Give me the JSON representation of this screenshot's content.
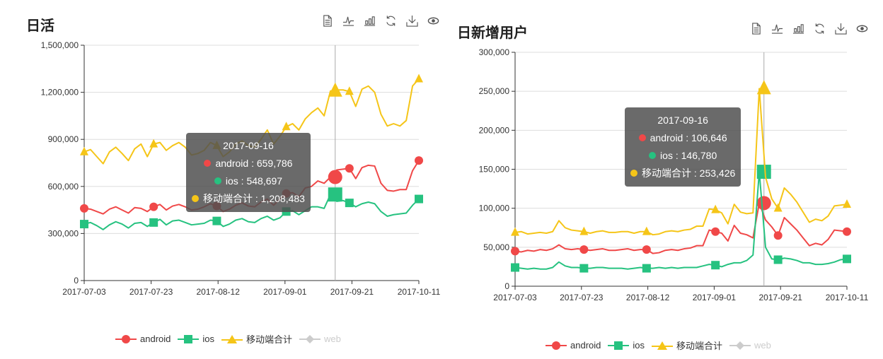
{
  "toolbox": {
    "icons": [
      "data-view-icon",
      "line-chart-icon",
      "bar-chart-icon",
      "restore-icon",
      "save-image-icon",
      "eye-icon"
    ]
  },
  "legend": {
    "items": [
      {
        "label": "android",
        "color": "#f04848",
        "marker": "circle",
        "active": true
      },
      {
        "label": "ios",
        "color": "#26c280",
        "marker": "square",
        "active": true
      },
      {
        "label": "移动端合计",
        "color": "#f5c518",
        "marker": "triangle",
        "active": true
      },
      {
        "label": "web",
        "color": "#cccccc",
        "marker": "diamond",
        "active": false
      }
    ]
  },
  "left": {
    "title": "日活",
    "tooltip": {
      "date": "2017-09-16",
      "rows": [
        {
          "name": "android",
          "value": "659,786",
          "color": "#f04848"
        },
        {
          "name": "ios",
          "value": "548,697",
          "color": "#26c280"
        },
        {
          "name": "移动端合计",
          "value": "1,208,483",
          "color": "#f5c518"
        }
      ]
    }
  },
  "right": {
    "title": "日新增用户",
    "tooltip": {
      "date": "2017-09-16",
      "rows": [
        {
          "name": "android",
          "value": "106,646",
          "color": "#f04848"
        },
        {
          "name": "ios",
          "value": "146,780",
          "color": "#26c280"
        },
        {
          "name": "移动端合计",
          "value": "253,426",
          "color": "#f5c518"
        }
      ]
    }
  },
  "chart_data": [
    {
      "type": "line",
      "title": "日活",
      "xlabel": "",
      "ylabel": "",
      "ylim": [
        0,
        1500000
      ],
      "yticks": [
        0,
        300000,
        600000,
        900000,
        1200000,
        1500000
      ],
      "ytick_labels": [
        "0",
        "300,000",
        "600,000",
        "900,000",
        "1,200,000",
        "1,500,000"
      ],
      "xticks": [
        "2017-07-03",
        "2017-07-23",
        "2017-08-12",
        "2017-09-01",
        "2017-09-21",
        "2017-10-11"
      ],
      "x_start": "2017-07-03",
      "x_end": "2017-10-11",
      "x_step_days": 2,
      "grid": true,
      "legend_position": "bottom",
      "highlight": {
        "x": "2017-09-16",
        "android": 659786,
        "ios": 548697,
        "移动端合计": 1208483
      },
      "series": [
        {
          "name": "android",
          "color": "#f04848",
          "marker": "circle",
          "values": [
            460000,
            455000,
            440000,
            425000,
            455000,
            470000,
            450000,
            430000,
            465000,
            460000,
            440000,
            470000,
            485000,
            450000,
            475000,
            485000,
            470000,
            450000,
            455000,
            470000,
            490000,
            475000,
            440000,
            455000,
            480000,
            495000,
            475000,
            470000,
            500000,
            520000,
            480000,
            520000,
            555000,
            560000,
            535000,
            590000,
            600000,
            635000,
            620000,
            659786,
            705000,
            710000,
            715000,
            650000,
            720000,
            735000,
            730000,
            620000,
            575000,
            570000,
            580000,
            580000,
            700000,
            765000
          ]
        },
        {
          "name": "ios",
          "color": "#26c280",
          "marker": "square",
          "values": [
            360000,
            370000,
            350000,
            325000,
            355000,
            375000,
            360000,
            335000,
            365000,
            370000,
            345000,
            370000,
            390000,
            355000,
            380000,
            385000,
            370000,
            355000,
            360000,
            365000,
            385000,
            380000,
            345000,
            360000,
            385000,
            395000,
            375000,
            370000,
            395000,
            410000,
            385000,
            400000,
            440000,
            445000,
            420000,
            445000,
            470000,
            470000,
            460000,
            548697,
            505000,
            510000,
            495000,
            470000,
            490000,
            500000,
            490000,
            440000,
            410000,
            420000,
            425000,
            430000,
            480000,
            520000
          ]
        },
        {
          "name": "移动端合计",
          "color": "#f5c518",
          "marker": "triangle",
          "values": [
            820000,
            835000,
            790000,
            745000,
            820000,
            850000,
            810000,
            765000,
            840000,
            870000,
            790000,
            870000,
            880000,
            830000,
            860000,
            880000,
            850000,
            800000,
            810000,
            830000,
            880000,
            860000,
            790000,
            820000,
            870000,
            890000,
            860000,
            850000,
            900000,
            960000,
            870000,
            920000,
            980000,
            1000000,
            960000,
            1030000,
            1070000,
            1100000,
            1050000,
            1208483,
            1215000,
            1215000,
            1205000,
            1110000,
            1220000,
            1240000,
            1200000,
            1060000,
            985000,
            1000000,
            985000,
            1020000,
            1240000,
            1285000
          ]
        },
        {
          "name": "web",
          "color": "#cccccc",
          "marker": "diamond",
          "values": []
        }
      ]
    },
    {
      "type": "line",
      "title": "日新增用户",
      "xlabel": "",
      "ylabel": "",
      "ylim": [
        0,
        300000
      ],
      "yticks": [
        0,
        50000,
        100000,
        150000,
        200000,
        250000,
        300000
      ],
      "ytick_labels": [
        "0",
        "50,000",
        "100,000",
        "150,000",
        "200,000",
        "250,000",
        "300,000"
      ],
      "xticks": [
        "2017-07-03",
        "2017-07-23",
        "2017-08-12",
        "2017-09-01",
        "2017-09-21",
        "2017-10-11"
      ],
      "x_start": "2017-07-03",
      "x_end": "2017-10-11",
      "x_step_days": 2,
      "grid": true,
      "legend_position": "bottom",
      "highlight": {
        "x": "2017-09-16",
        "android": 106646,
        "ios": 146780,
        "移动端合计": 253426
      },
      "series": [
        {
          "name": "android",
          "color": "#f04848",
          "marker": "circle",
          "values": [
            45000,
            44000,
            46000,
            45000,
            47000,
            46000,
            48000,
            53000,
            48000,
            47000,
            48000,
            47000,
            46000,
            47000,
            48000,
            46000,
            46000,
            47000,
            48000,
            46000,
            47000,
            47000,
            42000,
            43000,
            46000,
            47000,
            46000,
            48000,
            49000,
            52000,
            52000,
            72000,
            70000,
            68000,
            58000,
            78000,
            68000,
            66000,
            62000,
            106646,
            85000,
            76000,
            65000,
            88000,
            80000,
            72000,
            62000,
            52000,
            55000,
            53000,
            60000,
            72000,
            71000,
            70000
          ]
        },
        {
          "name": "ios",
          "color": "#26c280",
          "marker": "square",
          "values": [
            24000,
            23000,
            22000,
            23000,
            22000,
            22000,
            24000,
            31000,
            26000,
            24000,
            24000,
            23000,
            23000,
            24000,
            24000,
            23000,
            23000,
            23000,
            22000,
            23000,
            24000,
            23000,
            23000,
            24000,
            23000,
            24000,
            23000,
            24000,
            24000,
            24000,
            26000,
            28000,
            27000,
            25000,
            28000,
            30000,
            30000,
            33000,
            40000,
            146780,
            50000,
            35000,
            34000,
            36000,
            35000,
            33000,
            30000,
            30000,
            28000,
            28000,
            29000,
            31000,
            34000,
            35000
          ]
        },
        {
          "name": "移动端合计",
          "color": "#f5c518",
          "marker": "triangle",
          "values": [
            69000,
            70000,
            67000,
            68000,
            69000,
            68000,
            70000,
            84000,
            75000,
            72000,
            71000,
            70000,
            68000,
            70000,
            71000,
            69000,
            69000,
            70000,
            70000,
            68000,
            70000,
            70000,
            66000,
            67000,
            70000,
            71000,
            70000,
            72000,
            73000,
            77000,
            77000,
            99000,
            98000,
            94000,
            80000,
            105000,
            95000,
            93000,
            94000,
            253426,
            140000,
            112000,
            100000,
            126000,
            118000,
            108000,
            95000,
            82000,
            86000,
            84000,
            90000,
            103000,
            104000,
            105000
          ]
        },
        {
          "name": "web",
          "color": "#cccccc",
          "marker": "diamond",
          "values": []
        }
      ]
    }
  ]
}
